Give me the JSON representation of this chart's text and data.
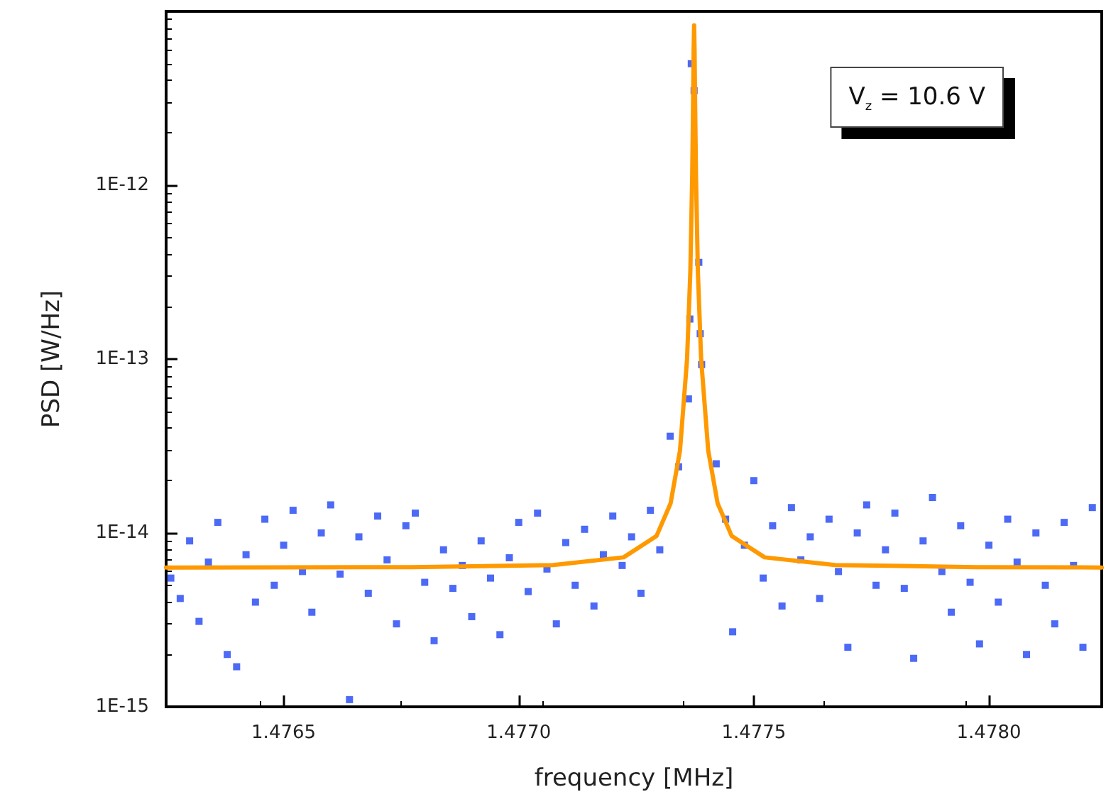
{
  "chart_data": {
    "type": "scatter",
    "xlabel": "frequency [MHz]",
    "ylabel": "PSD [W/Hz]",
    "annotations": [
      "V$_{z}$ = 10.6 V"
    ],
    "log": "y",
    "grid": false,
    "marker": "square",
    "xlim": [
      1.47625,
      1.47824
    ],
    "xticks": [
      {
        "value": 1.4765,
        "label": "1.4765"
      },
      {
        "value": 1.477,
        "label": "1.4770"
      },
      {
        "value": 1.4775,
        "label": "1.4775"
      },
      {
        "value": 1.478,
        "label": "1.4780"
      }
    ],
    "ylim": [
      1e-15,
      1e-11
    ],
    "yticks": [
      {
        "value": 1e-15,
        "label": "1E-15"
      },
      {
        "value": 1e-14,
        "label": "1E-14"
      },
      {
        "value": 1e-13,
        "label": "1E-13"
      },
      {
        "value": 1e-12,
        "label": "1E-12"
      },
      {
        "value": 1e-11,
        "label": null
      }
    ],
    "series": [
      {
        "color": "#1f45f2",
        "x": [
          1.47626,
          1.47628,
          1.4763,
          1.47632,
          1.47634,
          1.47636,
          1.47638,
          1.4764,
          1.47642,
          1.47644,
          1.47646,
          1.47648,
          1.4765,
          1.47652,
          1.47654,
          1.47656,
          1.47658,
          1.4766,
          1.47662,
          1.47664,
          1.47666,
          1.47668,
          1.4767,
          1.47672,
          1.47674,
          1.47676,
          1.47678,
          1.4768,
          1.47682,
          1.47684,
          1.47686,
          1.47688,
          1.4769,
          1.47692,
          1.47694,
          1.47696,
          1.47698,
          1.477,
          1.47702,
          1.47704,
          1.47706,
          1.47708,
          1.4771,
          1.47712,
          1.47714,
          1.47716,
          1.47718,
          1.4772,
          1.47722,
          1.47724,
          1.47726,
          1.47728,
          1.4773,
          1.477322,
          1.47734,
          1.477361,
          1.477364,
          1.477367,
          1.477373,
          1.477383,
          1.477386,
          1.477389,
          1.47742,
          1.47744,
          1.477455,
          1.47748,
          1.4775,
          1.47752,
          1.47754,
          1.47756,
          1.47758,
          1.4776,
          1.47762,
          1.47764,
          1.47766,
          1.47768,
          1.4777,
          1.47772,
          1.47774,
          1.47776,
          1.47778,
          1.4778,
          1.47782,
          1.47784,
          1.47786,
          1.47788,
          1.4779,
          1.47792,
          1.47794,
          1.47796,
          1.47798,
          1.478,
          1.47802,
          1.47804,
          1.47806,
          1.47808,
          1.4781,
          1.47812,
          1.47814,
          1.47816,
          1.47818,
          1.4782,
          1.47822
        ],
        "values": [
          5.5e-15,
          4.2e-15,
          9e-15,
          3.1e-15,
          6.8e-15,
          1.15e-14,
          2e-15,
          1.7e-15,
          7.5e-15,
          4e-15,
          1.2e-14,
          5e-15,
          8.5e-15,
          1.35e-14,
          6e-15,
          3.5e-15,
          1e-14,
          1.45e-14,
          5.8e-15,
          1.1e-15,
          9.5e-15,
          4.5e-15,
          1.25e-14,
          7e-15,
          3e-15,
          1.1e-14,
          1.3e-14,
          5.2e-15,
          2.4e-15,
          8e-15,
          4.8e-15,
          6.5e-15,
          3.3e-15,
          9e-15,
          5.5e-15,
          2.6e-15,
          7.2e-15,
          1.15e-14,
          4.6e-15,
          1.3e-14,
          6.2e-15,
          3e-15,
          8.8e-15,
          5e-15,
          1.05e-14,
          3.8e-15,
          7.5e-15,
          1.25e-14,
          6.5e-15,
          9.5e-15,
          4.5e-15,
          1.35e-14,
          8e-15,
          3.6e-14,
          2.4e-14,
          5.9e-14,
          1.7e-13,
          5e-12,
          3.5e-12,
          3.6e-13,
          1.4e-13,
          9.3e-14,
          2.5e-14,
          1.2e-14,
          2.7e-15,
          8.5e-15,
          2e-14,
          5.5e-15,
          1.1e-14,
          3.8e-15,
          1.4e-14,
          7e-15,
          9.5e-15,
          4.2e-15,
          1.2e-14,
          6e-15,
          2.2e-15,
          1e-14,
          1.45e-14,
          5e-15,
          8e-15,
          1.3e-14,
          4.8e-15,
          1.9e-15,
          9e-15,
          1.6e-14,
          6e-15,
          3.5e-15,
          1.1e-14,
          5.2e-15,
          2.3e-15,
          8.5e-15,
          4e-15,
          1.2e-14,
          6.8e-15,
          2e-15,
          1e-14,
          5e-15,
          3e-15,
          1.15e-14,
          6.5e-15,
          2.2e-15,
          1.4e-14
        ]
      },
      {
        "type": "line",
        "color": "#ff9900",
        "marker": "none",
        "line_style": "solid",
        "x": [
          1.47625,
          1.476773,
          1.477073,
          1.477223,
          1.477293,
          1.477323,
          1.477343,
          1.477358,
          1.477365,
          1.477369,
          1.477371,
          1.477372,
          1.477373,
          1.477374,
          1.477375,
          1.477377,
          1.477381,
          1.477388,
          1.477403,
          1.477423,
          1.477453,
          1.477523,
          1.477673,
          1.477973,
          1.47824
        ],
        "values": [
          6.32e-15,
          6.36e-15,
          6.54e-15,
          7.24e-15,
          9.6e-15,
          1.48e-14,
          2.98e-14,
          9.97e-14,
          3.19e-13,
          1.145e-12,
          3.24e-12,
          5.98e-12,
          8.3e-12,
          5.98e-12,
          3.24e-12,
          1.145e-12,
          3.19e-13,
          9.97e-14,
          2.98e-14,
          1.48e-14,
          9.6e-15,
          7.24e-15,
          6.54e-15,
          6.36e-15,
          6.33e-15
        ]
      }
    ]
  }
}
